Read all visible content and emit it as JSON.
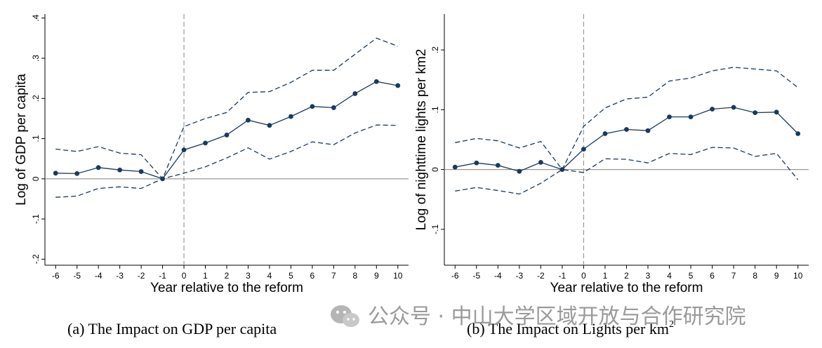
{
  "chart_data": [
    {
      "type": "line",
      "title": "",
      "caption": "(a) The Impact on GDP per capita",
      "xlabel": "Year relative to the reform",
      "ylabel": "Log of GDP per capita",
      "x": [
        -6,
        -5,
        -4,
        -3,
        -2,
        -1,
        0,
        1,
        2,
        3,
        4,
        5,
        6,
        7,
        8,
        9,
        10
      ],
      "x_tick_labels": [
        "-6",
        "-5",
        "-4",
        "-3",
        "-2",
        "-1",
        "0",
        "1",
        "2",
        "3",
        "4",
        "5",
        "6",
        "7",
        "8",
        "9",
        "10"
      ],
      "y_ticks": [
        -0.2,
        -0.1,
        0,
        0.1,
        0.2,
        0.3,
        0.4
      ],
      "y_tick_labels": [
        "-.2",
        "-.1",
        "0",
        ".1",
        ".2",
        ".3",
        ".4"
      ],
      "ylim": [
        -0.215,
        0.41
      ],
      "xlim": [
        -6.5,
        10.5
      ],
      "vline_x": 0,
      "hline_y": 0,
      "series": [
        {
          "role": "estimate",
          "values": [
            0.014,
            0.013,
            0.028,
            0.022,
            0.018,
            0.0,
            0.072,
            0.089,
            0.109,
            0.146,
            0.133,
            0.155,
            0.18,
            0.177,
            0.212,
            0.242,
            0.232
          ],
          "style": "solid-markers"
        },
        {
          "role": "upper_ci",
          "values": [
            0.074,
            0.068,
            0.08,
            0.064,
            0.06,
            0.0,
            0.13,
            0.15,
            0.165,
            0.215,
            0.217,
            0.24,
            0.27,
            0.27,
            0.31,
            0.35,
            0.33
          ],
          "style": "dashed"
        },
        {
          "role": "lower_ci",
          "values": [
            -0.046,
            -0.043,
            -0.024,
            -0.02,
            -0.024,
            0.0,
            0.014,
            0.03,
            0.052,
            0.077,
            0.049,
            0.068,
            0.092,
            0.085,
            0.114,
            0.134,
            0.133
          ],
          "style": "dashed"
        }
      ],
      "colors": {
        "line": "#1a3a5c",
        "reference": "#999999"
      }
    },
    {
      "type": "line",
      "title": "",
      "caption_prefix": "(b) The Impact on Lights per km",
      "caption_superscript": "2",
      "xlabel": "Year relative to the reform",
      "ylabel": "Log of nighttime lights per km2",
      "x": [
        -6,
        -5,
        -4,
        -3,
        -2,
        -1,
        0,
        1,
        2,
        3,
        4,
        5,
        6,
        7,
        8,
        9,
        10
      ],
      "x_tick_labels": [
        "-6",
        "-5",
        "-4",
        "-3",
        "-2",
        "-1",
        "0",
        "1",
        "2",
        "3",
        "4",
        "5",
        "6",
        "7",
        "8",
        "9",
        "10"
      ],
      "y_ticks": [
        -0.1,
        0,
        0.1,
        0.2
      ],
      "y_tick_labels": [
        "-.1",
        "0",
        ".1",
        ".2"
      ],
      "ylim": [
        -0.16,
        0.26
      ],
      "xlim": [
        -6.5,
        10.5
      ],
      "vline_x": 0,
      "hline_y": 0,
      "series": [
        {
          "role": "estimate",
          "values": [
            0.004,
            0.011,
            0.007,
            -0.003,
            0.012,
            0.0,
            0.034,
            0.06,
            0.067,
            0.065,
            0.088,
            0.088,
            0.101,
            0.104,
            0.095,
            0.096,
            0.06
          ],
          "style": "solid-markers"
        },
        {
          "role": "upper_ci",
          "values": [
            0.045,
            0.052,
            0.048,
            0.036,
            0.047,
            0.0,
            0.072,
            0.103,
            0.118,
            0.121,
            0.148,
            0.153,
            0.165,
            0.171,
            0.168,
            0.165,
            0.137
          ],
          "style": "dashed"
        },
        {
          "role": "lower_ci",
          "values": [
            -0.036,
            -0.03,
            -0.035,
            -0.041,
            -0.023,
            0.0,
            -0.005,
            0.018,
            0.017,
            0.011,
            0.027,
            0.025,
            0.037,
            0.036,
            0.022,
            0.027,
            -0.017
          ],
          "style": "dashed"
        }
      ],
      "colors": {
        "line": "#1a3a5c",
        "reference": "#999999"
      }
    }
  ],
  "watermark": {
    "text": "公众号 · 中山大学区域开放与合作研究院",
    "icon": "wechat-icon"
  }
}
